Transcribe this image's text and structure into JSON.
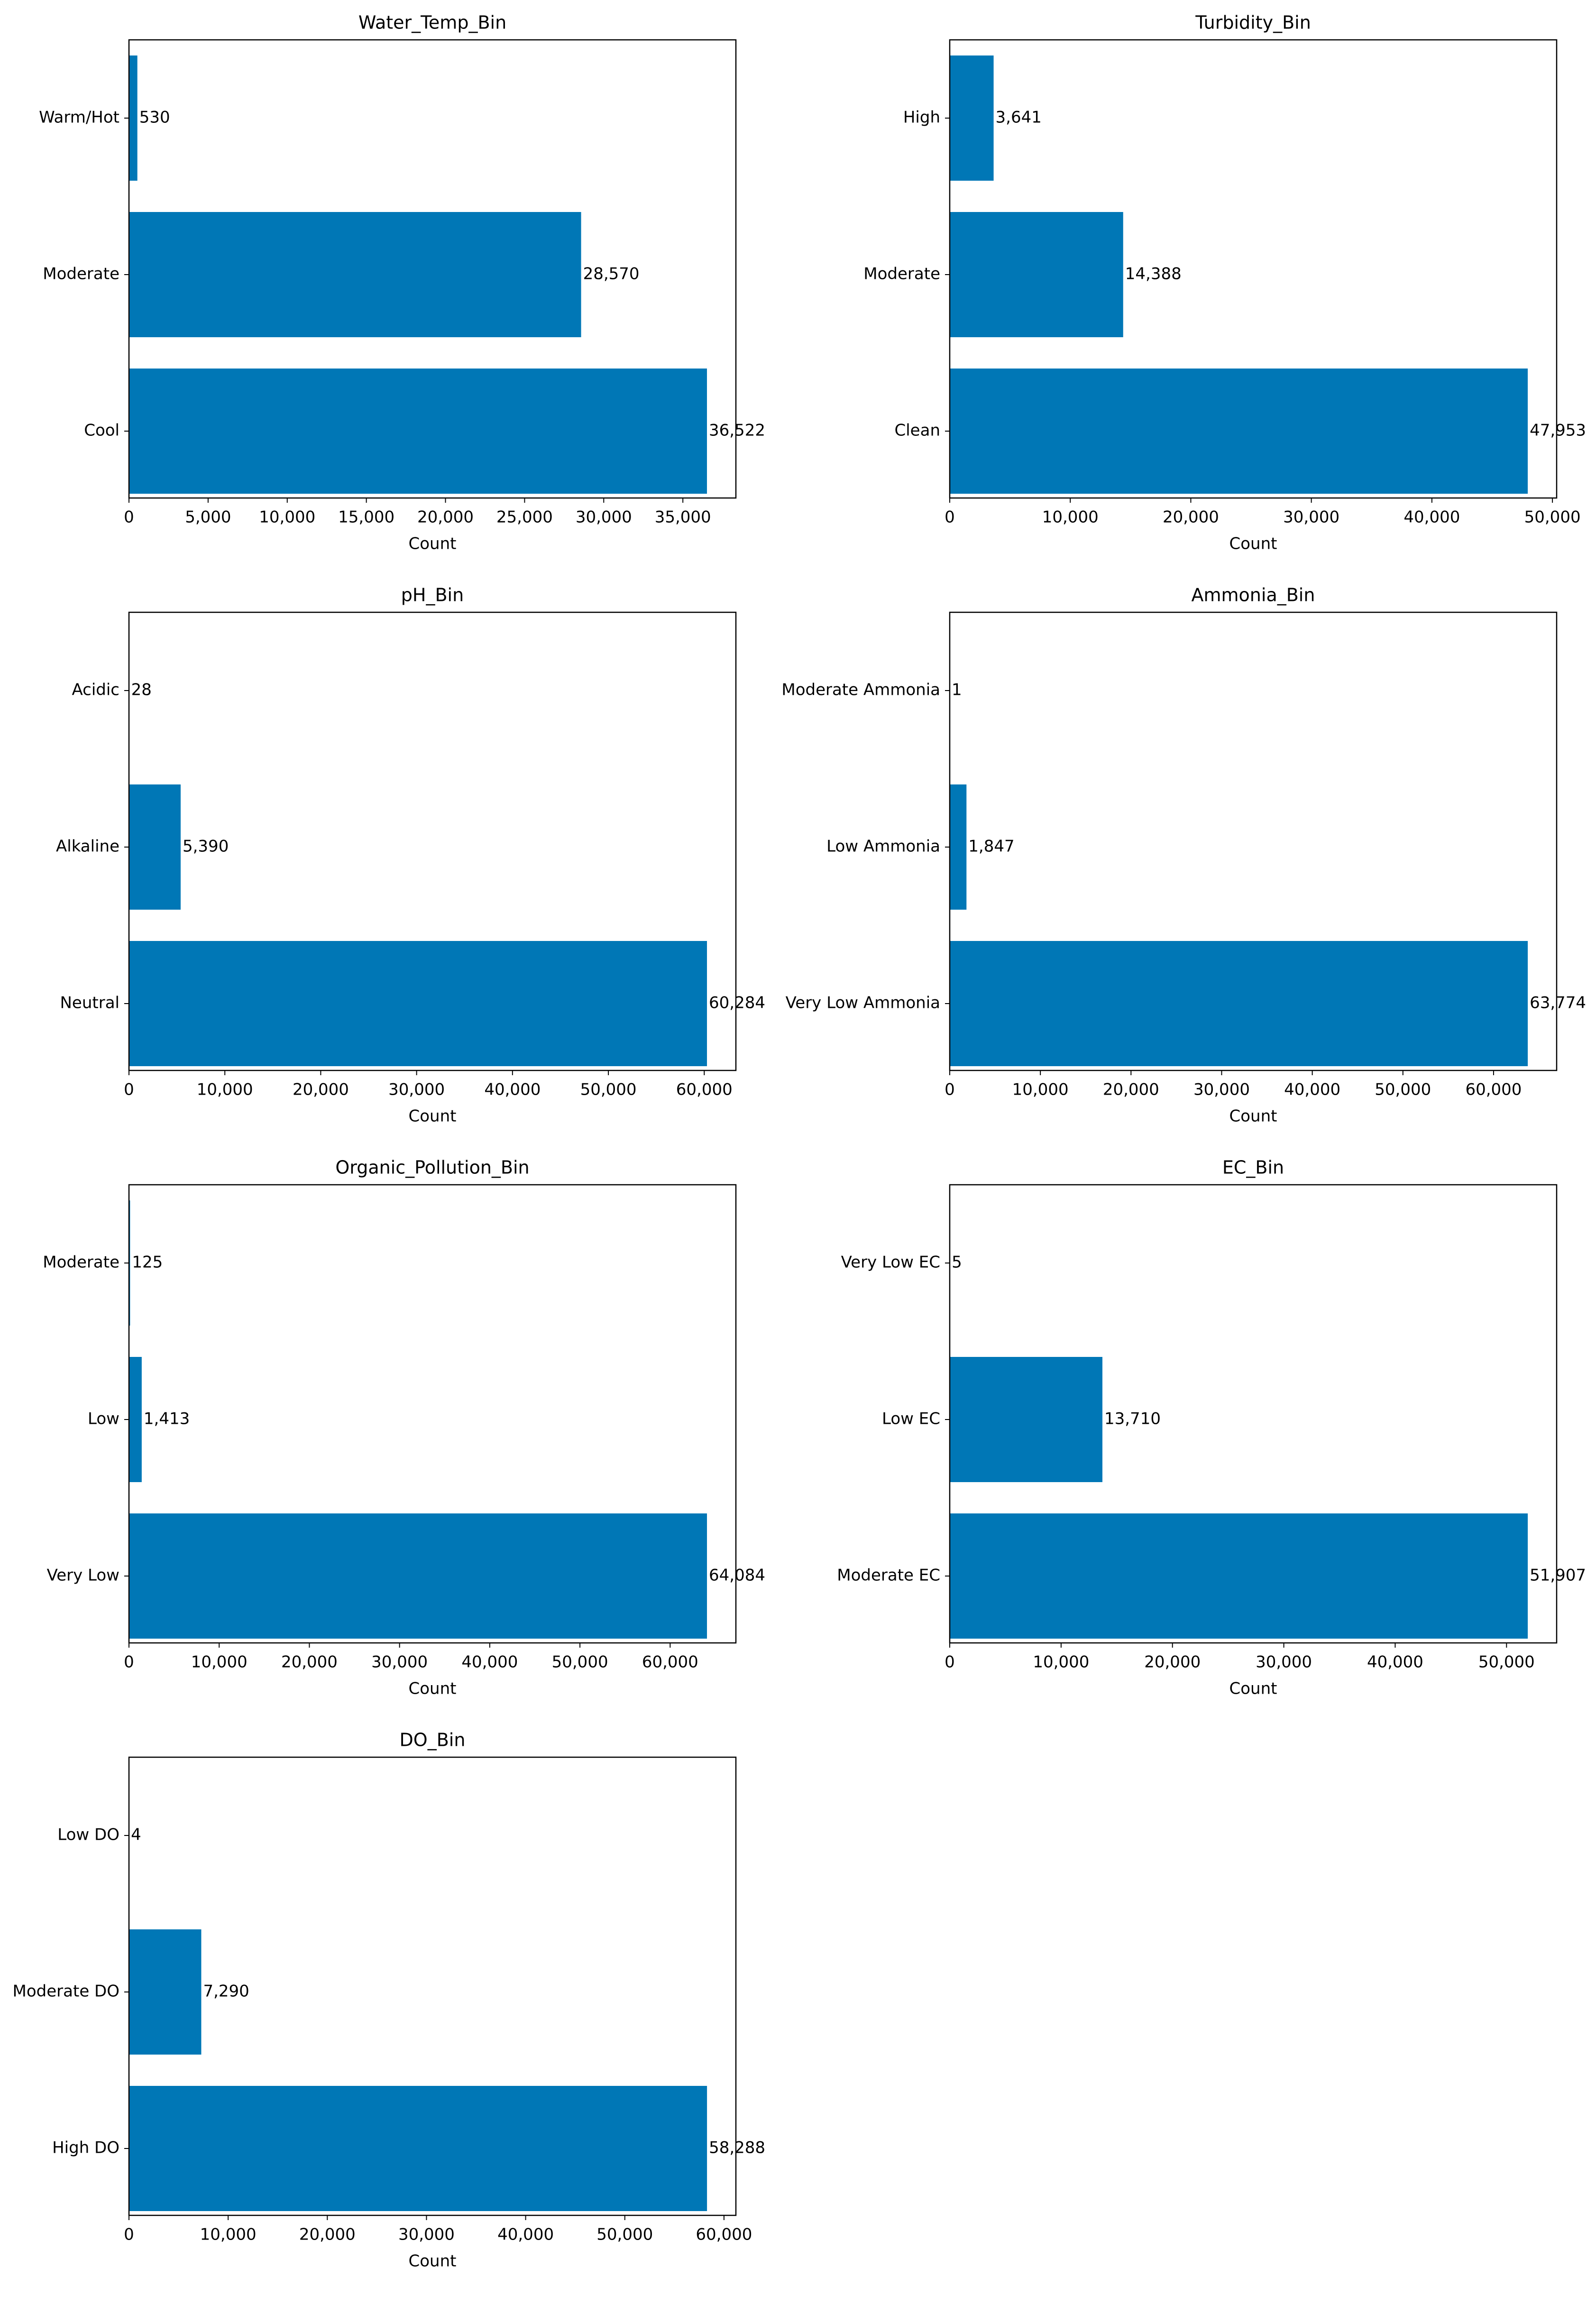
{
  "colors": {
    "bar": "#0077b6",
    "frame": "#000000",
    "background": "#ffffff"
  },
  "chart_data": [
    {
      "type": "bar",
      "orientation": "horizontal",
      "title": "Water_Temp_Bin",
      "xlabel": "Count",
      "ylabel": "",
      "categories": [
        "Warm/Hot",
        "Moderate",
        "Cool"
      ],
      "values": [
        530,
        28570,
        36522
      ],
      "value_labels": [
        "530",
        "28,570",
        "36,522"
      ],
      "xlim": [
        0,
        38350
      ],
      "xticks": [
        0,
        5000,
        10000,
        15000,
        20000,
        25000,
        30000,
        35000
      ],
      "xtick_labels": [
        "0",
        "5,000",
        "10,000",
        "15,000",
        "20,000",
        "25,000",
        "30,000",
        "35,000"
      ],
      "grid": false
    },
    {
      "type": "bar",
      "orientation": "horizontal",
      "title": "Turbidity_Bin",
      "xlabel": "Count",
      "ylabel": "",
      "categories": [
        "High",
        "Moderate",
        "Clean"
      ],
      "values": [
        3641,
        14388,
        47953
      ],
      "value_labels": [
        "3,641",
        "14,388",
        "47,953"
      ],
      "xlim": [
        0,
        50350
      ],
      "xticks": [
        0,
        10000,
        20000,
        30000,
        40000,
        50000
      ],
      "xtick_labels": [
        "0",
        "10,000",
        "20,000",
        "30,000",
        "40,000",
        "50,000"
      ],
      "grid": false
    },
    {
      "type": "bar",
      "orientation": "horizontal",
      "title": "pH_Bin",
      "xlabel": "Count",
      "ylabel": "",
      "categories": [
        "Acidic",
        "Alkaline",
        "Neutral"
      ],
      "values": [
        28,
        5390,
        60284
      ],
      "value_labels": [
        "28",
        "5,390",
        "60,284"
      ],
      "xlim": [
        0,
        63300
      ],
      "xticks": [
        0,
        10000,
        20000,
        30000,
        40000,
        50000,
        60000
      ],
      "xtick_labels": [
        "0",
        "10,000",
        "20,000",
        "30,000",
        "40,000",
        "50,000",
        "60,000"
      ],
      "grid": false
    },
    {
      "type": "bar",
      "orientation": "horizontal",
      "title": "Ammonia_Bin",
      "xlabel": "Count",
      "ylabel": "",
      "categories": [
        "Moderate Ammonia",
        "Low Ammonia",
        "Very Low Ammonia"
      ],
      "values": [
        1,
        1847,
        63774
      ],
      "value_labels": [
        "1",
        "1,847",
        "63,774"
      ],
      "xlim": [
        0,
        66960
      ],
      "xticks": [
        0,
        10000,
        20000,
        30000,
        40000,
        50000,
        60000
      ],
      "xtick_labels": [
        "0",
        "10,000",
        "20,000",
        "30,000",
        "40,000",
        "50,000",
        "60,000"
      ],
      "grid": false
    },
    {
      "type": "bar",
      "orientation": "horizontal",
      "title": "Organic_Pollution_Bin",
      "xlabel": "Count",
      "ylabel": "",
      "categories": [
        "Moderate",
        "Low",
        "Very Low"
      ],
      "values": [
        125,
        1413,
        64084
      ],
      "value_labels": [
        "125",
        "1,413",
        "64,084"
      ],
      "xlim": [
        0,
        67290
      ],
      "xticks": [
        0,
        10000,
        20000,
        30000,
        40000,
        50000,
        60000
      ],
      "xtick_labels": [
        "0",
        "10,000",
        "20,000",
        "30,000",
        "40,000",
        "50,000",
        "60,000"
      ],
      "grid": false
    },
    {
      "type": "bar",
      "orientation": "horizontal",
      "title": "EC_Bin",
      "xlabel": "Count",
      "ylabel": "",
      "categories": [
        "Very Low EC",
        "Low EC",
        "Moderate EC"
      ],
      "values": [
        5,
        13710,
        51907
      ],
      "value_labels": [
        "5",
        "13,710",
        "51,907"
      ],
      "xlim": [
        0,
        54500
      ],
      "xticks": [
        0,
        10000,
        20000,
        30000,
        40000,
        50000
      ],
      "xtick_labels": [
        "0",
        "10,000",
        "20,000",
        "30,000",
        "40,000",
        "50,000"
      ],
      "grid": false
    },
    {
      "type": "bar",
      "orientation": "horizontal",
      "title": "DO_Bin",
      "xlabel": "Count",
      "ylabel": "",
      "categories": [
        "Low DO",
        "Moderate DO",
        "High DO"
      ],
      "values": [
        4,
        7290,
        58288
      ],
      "value_labels": [
        "4",
        "7,290",
        "58,288"
      ],
      "xlim": [
        0,
        61200
      ],
      "xticks": [
        0,
        10000,
        20000,
        30000,
        40000,
        50000,
        60000
      ],
      "xtick_labels": [
        "0",
        "10,000",
        "20,000",
        "30,000",
        "40,000",
        "50,000",
        "60,000"
      ],
      "grid": false
    }
  ]
}
